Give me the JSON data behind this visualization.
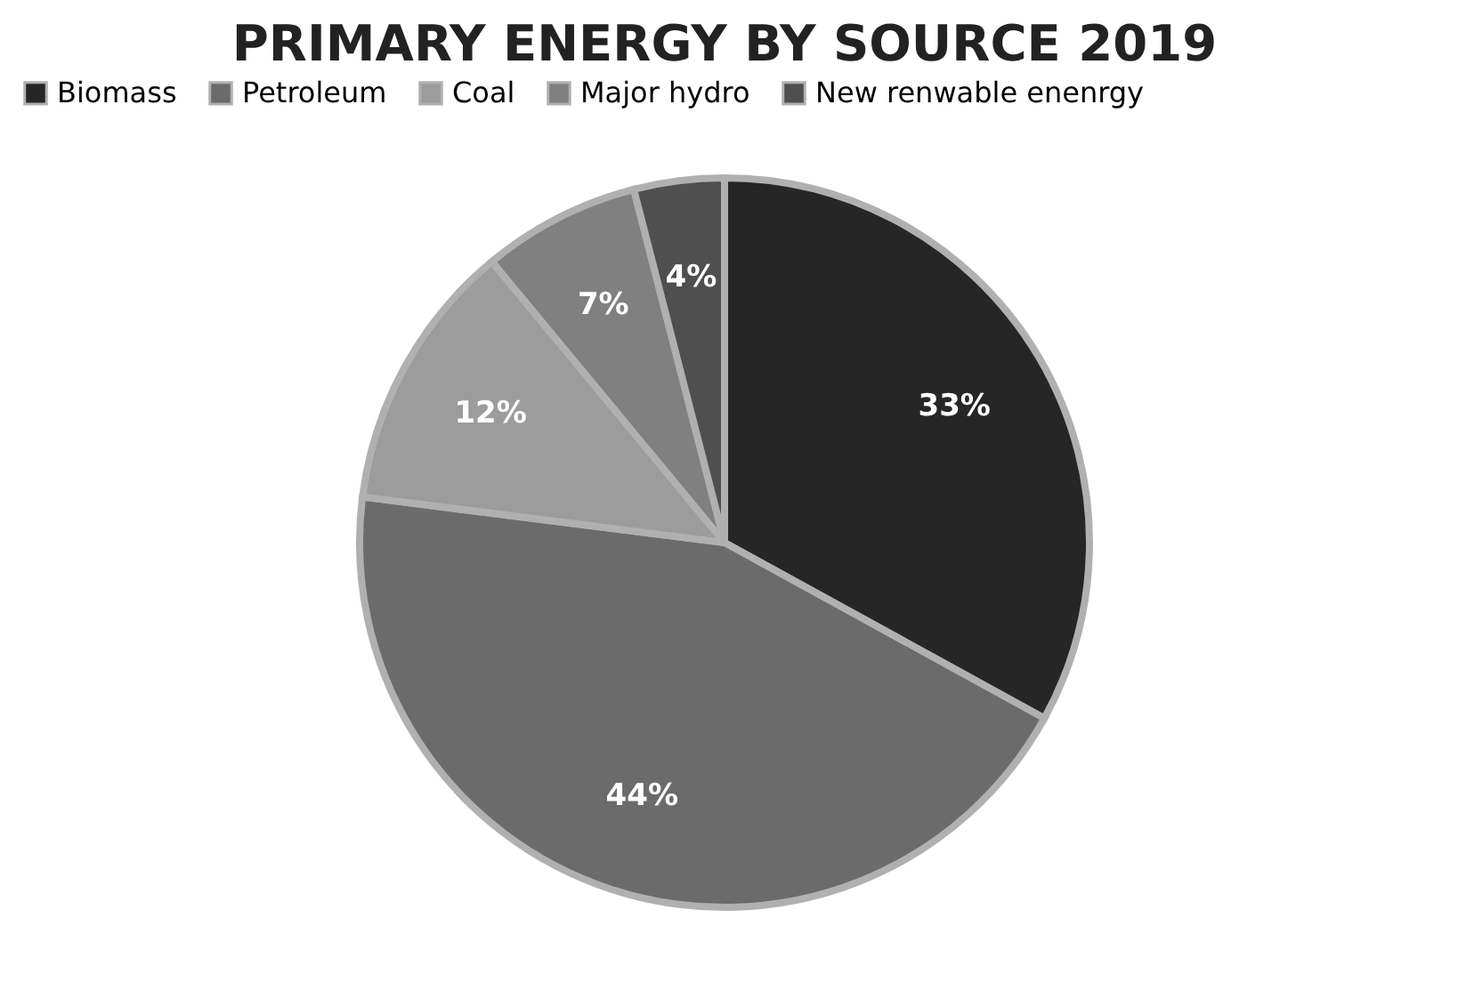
{
  "chart_data": {
    "type": "pie",
    "title": "PRIMARY ENERGY BY SOURCE 2019",
    "categories": [
      "Biomass",
      "Petroleum",
      "Coal",
      "Major hydro",
      "New renwable enenrgy"
    ],
    "values": [
      33,
      44,
      12,
      7,
      4
    ],
    "colors": [
      "#262626",
      "#6b6b6b",
      "#9c9c9c",
      "#808080",
      "#4f4f4f"
    ],
    "value_labels": [
      "33%",
      "44%",
      "12%",
      "7%",
      "4%"
    ],
    "legend": "top"
  }
}
